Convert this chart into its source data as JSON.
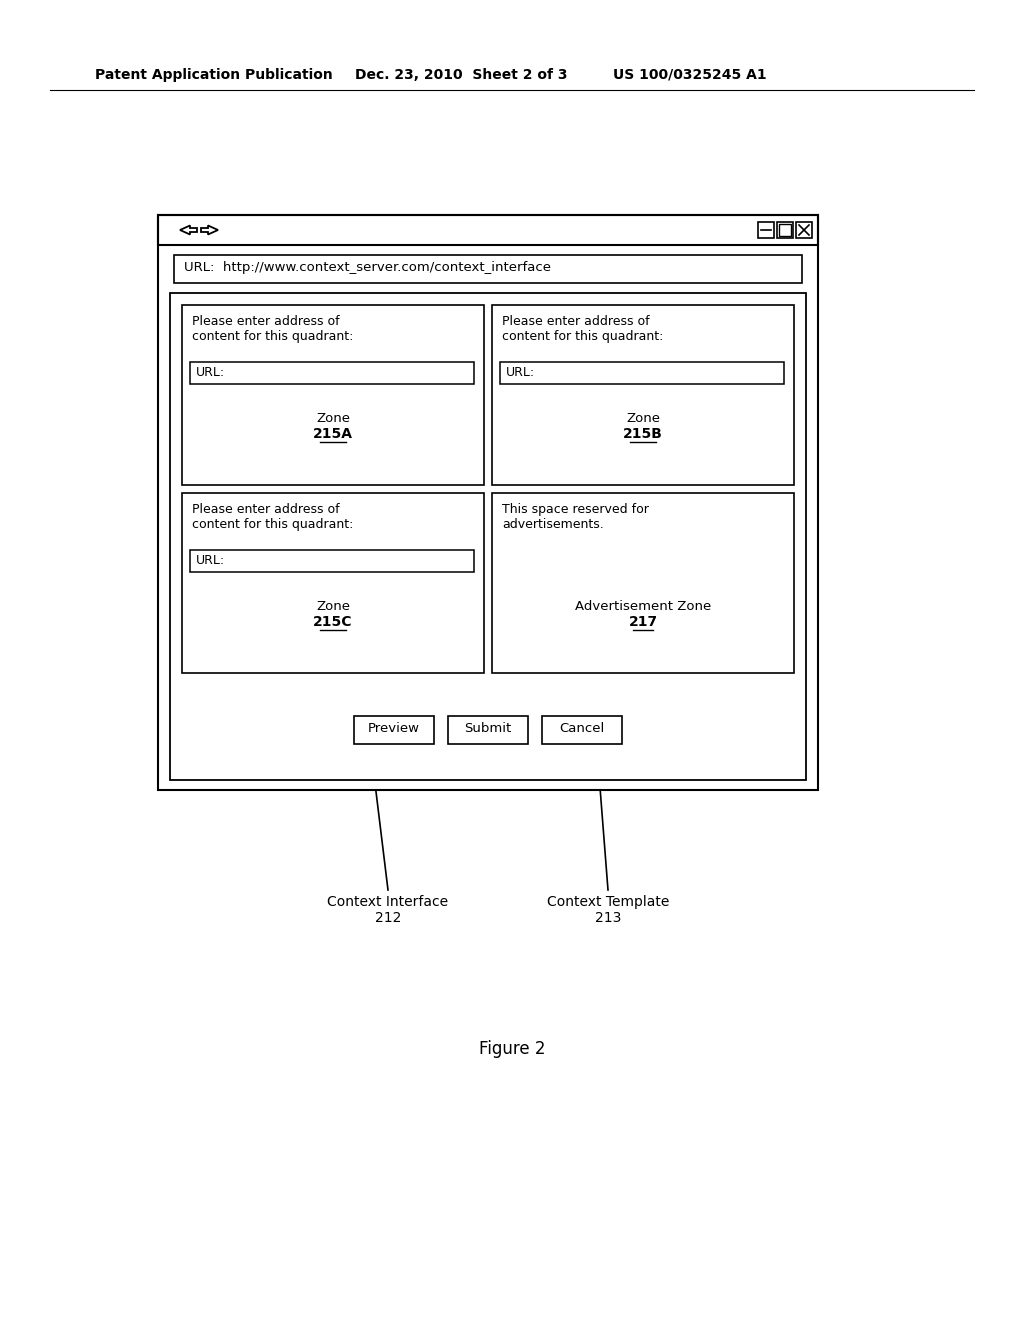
{
  "header_left": "Patent Application Publication",
  "header_mid": "Dec. 23, 2010  Sheet 2 of 3",
  "header_right": "US 100/0325245 A1",
  "url_text": "URL:  http://www.context_server.com/context_interface",
  "zone_a_label": "Zone",
  "zone_a_id": "215A",
  "zone_b_label": "Zone",
  "zone_b_id": "215B",
  "zone_c_label": "Zone",
  "zone_c_id": "215C",
  "zone_d_label": "Advertisement Zone",
  "zone_d_id": "217",
  "quad_text": "Please enter address of\ncontent for this quadrant:",
  "quad_url": "URL:",
  "ad_text": "This space reserved for\nadvertisements.",
  "btn_preview": "Preview",
  "btn_submit": "Submit",
  "btn_cancel": "Cancel",
  "label_ci": "Context Interface",
  "label_ci_id": "212",
  "label_ct": "Context Template",
  "label_ct_id": "213",
  "figure_caption": "Figure 2",
  "bg_color": "#ffffff",
  "box_color": "#000000",
  "text_color": "#000000"
}
